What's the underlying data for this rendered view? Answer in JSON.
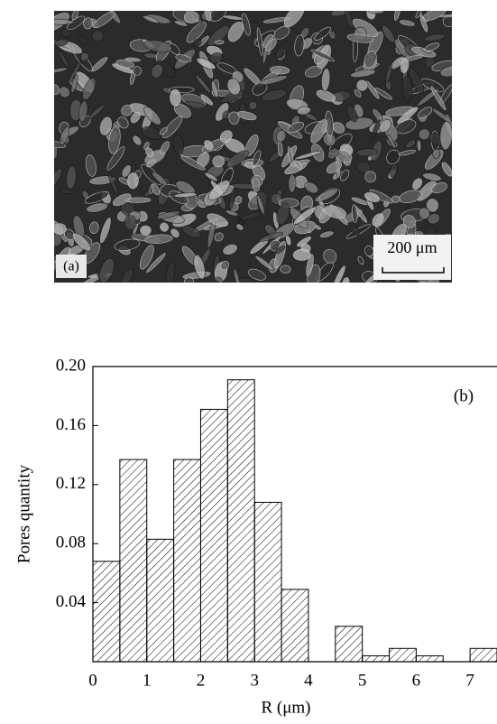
{
  "micrograph": {
    "label": "(a)",
    "scale_label": "200 μm"
  },
  "chart_data": {
    "type": "histogram",
    "annotation": "(b)",
    "xlabel": "R (μm)",
    "ylabel": "Pores quantity",
    "bins": [
      0,
      0.5,
      1,
      1.5,
      2,
      2.5,
      3,
      3.5,
      4,
      4.5,
      5,
      5.5,
      6,
      6.5,
      7,
      7.5
    ],
    "values": [
      0.068,
      0.137,
      0.083,
      0.137,
      0.171,
      0.191,
      0.108,
      0.049,
      0,
      0.024,
      0.004,
      0.009,
      0.004,
      0,
      0.009
    ],
    "color": "#000000",
    "xlim": [
      0,
      7.5
    ],
    "xticks": [
      0,
      1,
      2,
      3,
      4,
      5,
      6,
      7
    ],
    "ylim": [
      0,
      0.2
    ],
    "yticks": [
      {
        "value": 0.04,
        "label": "0.04"
      },
      {
        "value": 0.08,
        "label": "0.08"
      },
      {
        "value": 0.12,
        "label": "0.12"
      },
      {
        "value": 0.16,
        "label": "0.16"
      },
      {
        "value": 0.2,
        "label": "0.20"
      }
    ]
  }
}
